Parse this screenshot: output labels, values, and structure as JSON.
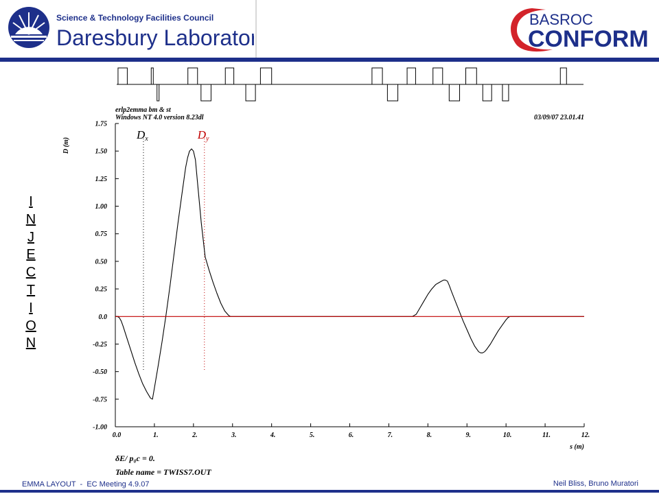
{
  "header": {
    "stfc_line1": "Science & Technology Facilities Council",
    "stfc_line2": "Daresbury Laboratory",
    "basroc_line1": "BASROC",
    "basroc_line2": "CONFORM",
    "accent_color": "#1d2f8a",
    "logo_red": "#d3232a"
  },
  "side_label": [
    "I",
    "N",
    "J",
    "E",
    "C",
    "T",
    "I",
    "O",
    "N"
  ],
  "footer": {
    "left": "EMMA LAYOUT  -  EC Meeting 4.9.07",
    "right": "Neil Bliss, Bruno Muratori"
  },
  "lattice": {
    "elements": [
      {
        "s": 0.07,
        "w": 0.24,
        "dir": "up"
      },
      {
        "s": 0.93,
        "w": 0.05,
        "dir": "up"
      },
      {
        "s": 1.08,
        "w": 0.05,
        "dir": "down"
      },
      {
        "s": 1.88,
        "w": 0.25,
        "dir": "up"
      },
      {
        "s": 2.22,
        "w": 0.26,
        "dir": "down"
      },
      {
        "s": 2.85,
        "w": 0.22,
        "dir": "up"
      },
      {
        "s": 3.38,
        "w": 0.25,
        "dir": "down"
      },
      {
        "s": 3.76,
        "w": 0.29,
        "dir": "up"
      },
      {
        "s": 6.65,
        "w": 0.27,
        "dir": "up"
      },
      {
        "s": 7.05,
        "w": 0.27,
        "dir": "down"
      },
      {
        "s": 7.56,
        "w": 0.22,
        "dir": "up"
      },
      {
        "s": 8.23,
        "w": 0.25,
        "dir": "up"
      },
      {
        "s": 8.65,
        "w": 0.27,
        "dir": "down"
      },
      {
        "s": 9.08,
        "w": 0.28,
        "dir": "up"
      },
      {
        "s": 9.52,
        "w": 0.23,
        "dir": "down"
      },
      {
        "s": 10.03,
        "w": 0.16,
        "dir": "down"
      },
      {
        "s": 11.53,
        "w": 0.16,
        "dir": "up"
      }
    ]
  },
  "chart_data": {
    "type": "line",
    "header_left_1": "erlp2emma bm & st",
    "header_left_2": "Windows NT 4.0 version 8.23dl",
    "header_right": "03/09/07  23.01.41",
    "ylabel": "D (m)",
    "xlabel": "s (m)",
    "xlim": [
      0,
      12
    ],
    "ylim": [
      -1.0,
      1.75
    ],
    "x_ticks": [
      "0.0",
      "1.",
      "2.",
      "3.",
      "4.",
      "5.",
      "6.",
      "7.",
      "8.",
      "9.",
      "10.",
      "11.",
      "12."
    ],
    "x_tick_values": [
      0,
      1,
      2,
      3,
      4,
      5,
      6,
      7,
      8,
      9,
      10,
      11,
      12
    ],
    "y_ticks": [
      "1.75",
      "1.50",
      "1.25",
      "1.00",
      "0.75",
      "0.50",
      "0.25",
      "0.0",
      "-0.25",
      "-0.50",
      "-0.75",
      "-1.00"
    ],
    "y_tick_values": [
      1.75,
      1.5,
      1.25,
      1.0,
      0.75,
      0.5,
      0.25,
      0.0,
      -0.25,
      -0.5,
      -0.75,
      -1.0
    ],
    "legend_dx": "D",
    "legend_dx_sub": "x",
    "legend_dy": "D",
    "legend_dy_sub": "y",
    "legend_dx_s": 0.72,
    "legend_dy_s": 2.28,
    "footer_1": "δE/ p₀c  =  0.",
    "footer_2": "Table name = TWISS7.OUT",
    "series": [
      {
        "color": "#000000",
        "x": [
          0.0,
          0.05,
          0.1,
          0.15,
          0.2,
          0.3,
          0.4,
          0.5,
          0.6,
          0.7,
          0.8,
          0.9,
          0.95,
          1.0,
          1.1,
          1.2,
          1.3,
          1.4,
          1.5,
          1.6,
          1.7,
          1.8,
          1.85,
          1.9,
          1.95,
          2.0,
          2.05,
          2.1,
          2.2,
          2.3,
          2.4,
          2.5,
          2.6,
          2.7,
          2.8,
          2.9,
          2.95,
          3.0,
          3.05,
          3.1,
          7.6,
          7.7,
          7.8,
          7.9,
          8.0,
          8.1,
          8.2,
          8.3,
          8.4,
          8.45,
          8.5,
          8.55,
          8.6,
          8.7,
          8.8,
          8.9,
          9.0,
          9.1,
          9.2,
          9.3,
          9.35,
          9.4,
          9.45,
          9.5,
          9.6,
          9.7,
          9.8,
          9.9,
          10.0,
          10.05,
          10.1,
          10.2,
          12.0
        ],
        "y": [
          0.0,
          0.0,
          -0.01,
          -0.04,
          -0.09,
          -0.2,
          -0.31,
          -0.42,
          -0.52,
          -0.61,
          -0.68,
          -0.74,
          -0.75,
          -0.65,
          -0.44,
          -0.22,
          0.02,
          0.28,
          0.56,
          0.84,
          1.1,
          1.35,
          1.44,
          1.5,
          1.52,
          1.5,
          1.42,
          1.23,
          0.85,
          0.54,
          0.42,
          0.31,
          0.21,
          0.12,
          0.05,
          0.01,
          0.0,
          0.0,
          0.0,
          0.0,
          0.0,
          0.02,
          0.08,
          0.14,
          0.2,
          0.25,
          0.29,
          0.31,
          0.33,
          0.33,
          0.32,
          0.28,
          0.23,
          0.14,
          0.05,
          -0.04,
          -0.12,
          -0.2,
          -0.27,
          -0.32,
          -0.33,
          -0.33,
          -0.32,
          -0.3,
          -0.25,
          -0.19,
          -0.13,
          -0.08,
          -0.03,
          -0.01,
          0.0,
          0.0,
          0.0
        ]
      },
      {
        "color": "#c00000",
        "x": [
          0,
          12
        ],
        "y": [
          0.0,
          0.0
        ]
      }
    ]
  }
}
